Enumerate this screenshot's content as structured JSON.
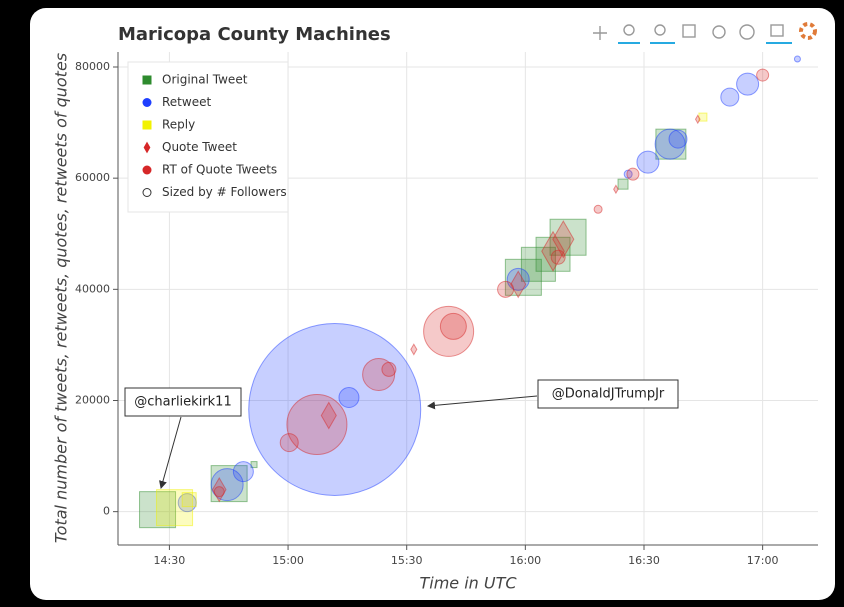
{
  "chart_data": {
    "type": "scatter",
    "title": "Maricopa County Machines",
    "xlabel": "Time in UTC",
    "ylabel": "Total number of tweets, retweets, quotes, retweets of quotes",
    "xlim": [
      857,
      1034
    ],
    "ylim": [
      -6000,
      82700
    ],
    "xticks": [
      {
        "value": 870,
        "label": "14:30"
      },
      {
        "value": 900,
        "label": "15:00"
      },
      {
        "value": 930,
        "label": "15:30"
      },
      {
        "value": 960,
        "label": "16:00"
      },
      {
        "value": 990,
        "label": "16:30"
      },
      {
        "value": 1020,
        "label": "17:00"
      }
    ],
    "yticks": [
      0,
      20000,
      40000,
      60000,
      80000
    ],
    "grid": true,
    "legend": "top-left",
    "series": [
      {
        "name": "Original Tweet",
        "color": "#2e8b2e",
        "marker": "square",
        "x": [
          867,
          885.1,
          970.8,
          967,
          963.3,
          959.5,
          996.8,
          984.7,
          891.4
        ],
        "values": [
          360,
          5045,
          49370,
          46300,
          44500,
          42160,
          66120,
          58920,
          8470
        ],
        "sizes": [
          36,
          36,
          36,
          34,
          34,
          36,
          30,
          10,
          6
        ]
      },
      {
        "name": "Retweet",
        "color": "#1f3fff",
        "marker": "circle",
        "x": [
          911.8,
          884.6,
          888.7,
          874.5,
          915.4,
          958.2,
          991,
          996.6,
          1011.7,
          1016.2,
          998.6,
          1028.8,
          986
        ],
        "values": [
          18378,
          4865,
          7200,
          1620,
          20540,
          41800,
          62880,
          66120,
          74590,
          76930,
          67030,
          81440,
          60720
        ],
        "sizes": [
          172,
          32,
          20,
          18,
          20,
          22,
          22,
          30,
          18,
          22,
          18,
          6,
          8
        ]
      },
      {
        "name": "Reply",
        "color": "#f2f200",
        "marker": "square",
        "x": [
          871.3,
          1004.9,
          875
        ],
        "values": [
          720,
          70990,
          2160
        ],
        "sizes": [
          36,
          8,
          14
        ]
      },
      {
        "name": "Quote Tweet",
        "color": "#d62728",
        "marker": "diamond",
        "x": [
          910.3,
          967,
          969.6,
          958.2,
          882.6,
          931.8,
          982.9,
          1003.6
        ],
        "values": [
          17300,
          46840,
          49000,
          40900,
          3960,
          29190,
          58000,
          70600
        ],
        "sizes": [
          20,
          30,
          28,
          20,
          18,
          8,
          6,
          6
        ]
      },
      {
        "name": "RT of Quote Tweets",
        "color": "#d62728",
        "marker": "circle",
        "x": [
          907.3,
          940.6,
          922.9,
          900.3,
          941.8,
          955,
          968.3,
          987.2,
          1020,
          925.5,
          882.6,
          978.4
        ],
        "values": [
          15680,
          32430,
          24680,
          12430,
          33330,
          40000,
          45770,
          60720,
          78550,
          25590,
          3600,
          54400
        ],
        "sizes": [
          60,
          50,
          32,
          18,
          26,
          16,
          14,
          12,
          12,
          14,
          10,
          8
        ]
      }
    ],
    "size_legend": "Sized by # Followers",
    "annotations": [
      "@charliekirk11",
      "@DonaldJTrumpJr"
    ]
  }
}
